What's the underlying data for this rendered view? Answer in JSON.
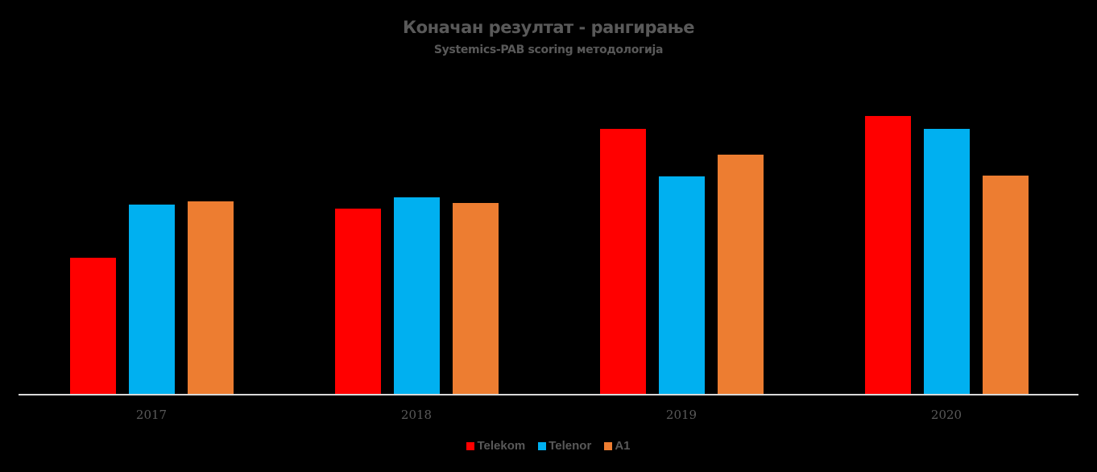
{
  "chart_data": {
    "type": "bar",
    "title": "Коначан резултат - рангирање",
    "subtitle": "Systemics-PAB scoring методологија",
    "categories": [
      "2017",
      "2018",
      "2019",
      "2020"
    ],
    "series": [
      {
        "name": "Telekom",
        "color": "#FF0000",
        "values": [
          170,
          231,
          330,
          346
        ]
      },
      {
        "name": "Telenor",
        "color": "#00B0F0",
        "values": [
          236,
          245,
          271,
          330
        ]
      },
      {
        "name": "A1",
        "color": "#ED7D31",
        "values": [
          240,
          238,
          298,
          272
        ]
      }
    ],
    "xlabel": "",
    "ylabel": "",
    "ylim": [
      0,
      390
    ],
    "grid": false,
    "y_axis_visible": false,
    "legend_position": "bottom",
    "note": "No y-axis scale shown; values are relative bar heights estimated in pixels"
  },
  "layout": {
    "group_centers": [
      188,
      517,
      846,
      1175
    ],
    "bar_offsets": [
      -73,
      0,
      73
    ]
  }
}
